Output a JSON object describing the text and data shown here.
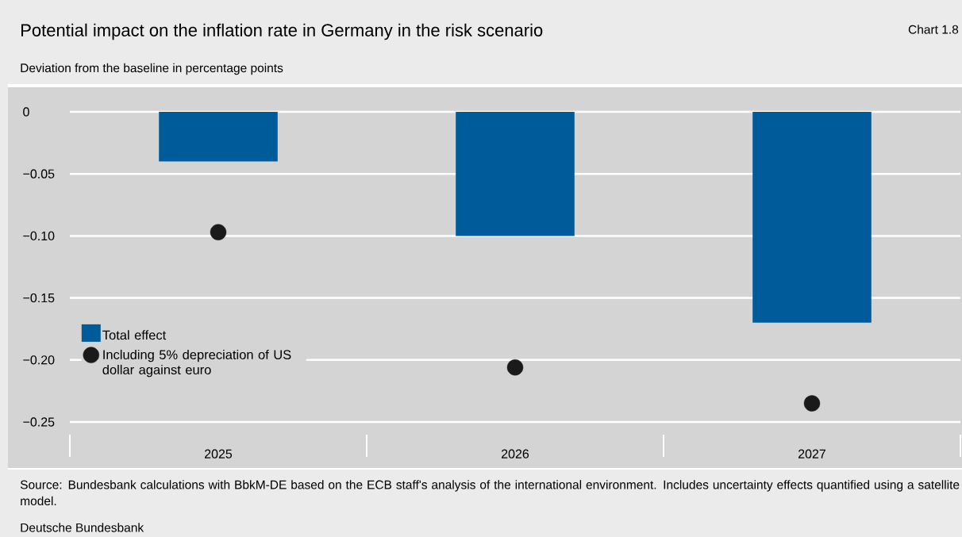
{
  "chart_data": {
    "type": "bar",
    "title": "Potential impact on the inflation rate in Germany in the risk scenario",
    "subtitle": "Deviation from the baseline in percentage points",
    "categories": [
      "2025",
      "2026",
      "2027"
    ],
    "series": [
      {
        "name": "Total effect",
        "color": "#005b9a",
        "values": [
          -0.04,
          -0.1,
          -0.17
        ]
      },
      {
        "name": "Including 5% depreciation of US dollar against euro",
        "type": "scatter",
        "color": "#1a1a1a",
        "values": [
          -0.097,
          -0.206,
          -0.235
        ]
      }
    ],
    "ylim": [
      -0.25,
      0.02
    ],
    "yticks": [
      {
        "value": 0,
        "label": "0"
      },
      {
        "value": -0.05,
        "label": "−0.05"
      },
      {
        "value": -0.1,
        "label": "−0.10"
      },
      {
        "value": -0.15,
        "label": "−0.15"
      },
      {
        "value": -0.2,
        "label": "−0.20"
      },
      {
        "value": -0.25,
        "label": "−0.25"
      }
    ],
    "grid": "y",
    "legend": "left",
    "marker": "circle",
    "annotations": [
      "Chart 1.8",
      "Source: Bundesbank calculations with BbkM-DE based on the ECB staff's analysis of the international environment. Includes uncertainty effects quantified using a satellite model.",
      "Deutsche Bundesbank"
    ]
  }
}
